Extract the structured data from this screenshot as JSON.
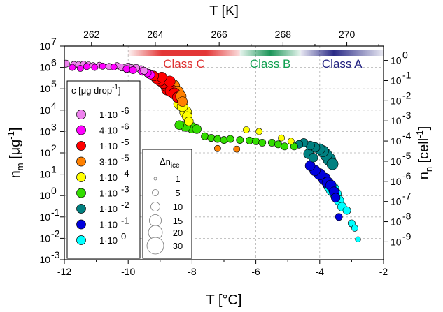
{
  "chart_data": {
    "type": "scatter",
    "axes": {
      "bottom": {
        "title": "T [°C]",
        "range": [
          -12,
          -2
        ],
        "ticks": [
          "-12",
          "-10",
          "-8",
          "-6",
          "-4",
          "-2"
        ]
      },
      "top": {
        "title": "T [K]",
        "range": [
          261.15,
          271.15
        ],
        "ticks": [
          "262",
          "264",
          "266",
          "268",
          "270"
        ]
      },
      "left": {
        "title_main": "n",
        "title_sub": "m",
        "title_unit": " [μg",
        "title_sup": "-1",
        "title_end": "]",
        "scale": "log",
        "range": [
          0.001,
          10000000
        ],
        "ticks": [
          "10-3",
          "10-2",
          "10-1",
          "100",
          "101",
          "102",
          "103",
          "104",
          "105",
          "106",
          "107"
        ]
      },
      "right": {
        "title_main": "n",
        "title_sub": "n",
        "title_unit": " [cell",
        "title_sup": "-1",
        "title_end": "]",
        "scale": "log",
        "ticks": [
          "10-9",
          "10-8",
          "10-7",
          "10-6",
          "10-5",
          "10-4",
          "10-3",
          "10-2",
          "10-1",
          "100"
        ]
      }
    },
    "grid": true,
    "class_bands": [
      {
        "label": "Class C",
        "t_from": -10.0,
        "t_to": -6.5,
        "color": "#e02020"
      },
      {
        "label": "Class B",
        "t_from": -6.5,
        "t_to": -4.6,
        "color": "#109050"
      },
      {
        "label": "Class A",
        "t_from": -4.6,
        "t_to": -2.0,
        "color": "#202080"
      }
    ],
    "concentration_legend": {
      "title": "c [μg drop",
      "title_sup": "-1",
      "title_end": "]",
      "entries": [
        {
          "label": "1·10",
          "exp": "-6",
          "color": "#ee82ee"
        },
        {
          "label": "4·10",
          "exp": "-6",
          "color": "#ff00ff"
        },
        {
          "label": "1·10",
          "exp": "-5",
          "color": "#ff0000"
        },
        {
          "label": "3·10",
          "exp": "-5",
          "color": "#ff8000"
        },
        {
          "label": "1·10",
          "exp": "-4",
          "color": "#ffff00"
        },
        {
          "label": "1·10",
          "exp": "-3",
          "color": "#33dd00"
        },
        {
          "label": "1·10",
          "exp": "-2",
          "color": "#008080"
        },
        {
          "label": "1·10",
          "exp": "-1",
          "color": "#0000dd"
        },
        {
          "label": "1·10",
          "exp": "0",
          "color": "#00ffff"
        }
      ]
    },
    "size_legend": {
      "title": "Δn",
      "title_sub": "ice",
      "entries": [
        "1",
        "5",
        "10",
        "15",
        "20",
        "30"
      ],
      "values": [
        1,
        5,
        10,
        15,
        20,
        30
      ]
    },
    "series": [
      {
        "conc": "1e-6",
        "color": "#ee82ee",
        "points": [
          {
            "x": -11.95,
            "y": 1500000.0,
            "s": 3
          },
          {
            "x": -11.7,
            "y": 1300000.0,
            "s": 3
          },
          {
            "x": -11.55,
            "y": 1350000.0,
            "s": 2
          },
          {
            "x": -11.4,
            "y": 1400000.0,
            "s": 2
          },
          {
            "x": -11.25,
            "y": 1300000.0,
            "s": 2
          },
          {
            "x": -11.1,
            "y": 1200000.0,
            "s": 2
          },
          {
            "x": -10.9,
            "y": 1250000.0,
            "s": 2
          },
          {
            "x": -10.6,
            "y": 1100000.0,
            "s": 2
          },
          {
            "x": -10.35,
            "y": 1200000.0,
            "s": 2
          },
          {
            "x": -10.2,
            "y": 1000000.0,
            "s": 3
          },
          {
            "x": -10.0,
            "y": 1050000.0,
            "s": 4
          },
          {
            "x": -9.9,
            "y": 900000.0,
            "s": 4
          },
          {
            "x": -9.75,
            "y": 950000.0,
            "s": 3
          },
          {
            "x": -9.6,
            "y": 800000.0,
            "s": 4
          },
          {
            "x": -9.5,
            "y": 700000.0,
            "s": 3
          }
        ]
      },
      {
        "conc": "4e-6",
        "color": "#ff00ff",
        "points": [
          {
            "x": -11.75,
            "y": 1000000.0,
            "s": 2
          },
          {
            "x": -11.5,
            "y": 900000.0,
            "s": 2
          },
          {
            "x": -11.3,
            "y": 1100000.0,
            "s": 2
          },
          {
            "x": -11.05,
            "y": 1000000.0,
            "s": 2
          },
          {
            "x": -10.8,
            "y": 1150000.0,
            "s": 2
          },
          {
            "x": -10.45,
            "y": 1050000.0,
            "s": 2
          },
          {
            "x": -10.05,
            "y": 850000.0,
            "s": 3
          },
          {
            "x": -9.85,
            "y": 750000.0,
            "s": 3
          },
          {
            "x": -9.55,
            "y": 650000.0,
            "s": 4
          },
          {
            "x": -9.4,
            "y": 550000.0,
            "s": 4
          },
          {
            "x": -9.3,
            "y": 450000.0,
            "s": 5
          }
        ]
      },
      {
        "conc": "1e-5",
        "color": "#ff0000",
        "points": [
          {
            "x": -9.35,
            "y": 500000.0,
            "s": 6
          },
          {
            "x": -9.2,
            "y": 400000.0,
            "s": 8
          },
          {
            "x": -9.1,
            "y": 300000.0,
            "s": 10
          },
          {
            "x": -9.0,
            "y": 250000.0,
            "s": 12
          },
          {
            "x": -8.9,
            "y": 200000.0,
            "s": 14
          },
          {
            "x": -8.8,
            "y": 150000.0,
            "s": 16
          },
          {
            "x": -8.75,
            "y": 100000.0,
            "s": 18
          },
          {
            "x": -8.65,
            "y": 80000.0,
            "s": 15
          },
          {
            "x": -8.55,
            "y": 60000.0,
            "s": 12
          },
          {
            "x": -8.45,
            "y": 40000.0,
            "s": 10
          },
          {
            "x": -8.95,
            "y": 350000.0,
            "s": 9
          },
          {
            "x": -8.7,
            "y": 220000.0,
            "s": 11
          }
        ]
      },
      {
        "conc": "3e-5",
        "color": "#ff8000",
        "points": [
          {
            "x": -8.6,
            "y": 130000.0,
            "s": 20
          },
          {
            "x": -8.45,
            "y": 70000.0,
            "s": 14
          },
          {
            "x": -8.35,
            "y": 45000.0,
            "s": 10
          },
          {
            "x": -8.3,
            "y": 25000.0,
            "s": 8
          },
          {
            "x": -7.2,
            "y": 160,
            "s": 2
          },
          {
            "x": -6.6,
            "y": 150,
            "s": 2
          }
        ]
      },
      {
        "conc": "1e-4",
        "color": "#ffff00",
        "points": [
          {
            "x": -8.4,
            "y": 20000.0,
            "s": 12
          },
          {
            "x": -8.3,
            "y": 15000.0,
            "s": 10
          },
          {
            "x": -8.2,
            "y": 8000.0,
            "s": 14
          },
          {
            "x": -8.15,
            "y": 5000.0,
            "s": 8
          },
          {
            "x": -8.1,
            "y": 3000.0,
            "s": 6
          },
          {
            "x": -6.3,
            "y": 1200.0,
            "s": 2
          },
          {
            "x": -5.9,
            "y": 1000.0,
            "s": 2
          },
          {
            "x": -5.2,
            "y": 500,
            "s": 2
          },
          {
            "x": -4.9,
            "y": 350,
            "s": 2
          }
        ]
      },
      {
        "conc": "1e-3",
        "color": "#33dd00",
        "points": [
          {
            "x": -8.4,
            "y": 2000.0,
            "s": 6
          },
          {
            "x": -8.2,
            "y": 1700.0,
            "s": 8
          },
          {
            "x": -8.0,
            "y": 1500.0,
            "s": 10
          },
          {
            "x": -7.85,
            "y": 1300.0,
            "s": 6
          },
          {
            "x": -7.6,
            "y": 600,
            "s": 3
          },
          {
            "x": -7.4,
            "y": 500,
            "s": 3
          },
          {
            "x": -7.2,
            "y": 450,
            "s": 3
          },
          {
            "x": -7.0,
            "y": 400,
            "s": 3
          },
          {
            "x": -6.8,
            "y": 450,
            "s": 3
          },
          {
            "x": -6.5,
            "y": 400,
            "s": 3
          },
          {
            "x": -6.2,
            "y": 380,
            "s": 3
          },
          {
            "x": -6.0,
            "y": 350,
            "s": 3
          },
          {
            "x": -5.8,
            "y": 300,
            "s": 3
          },
          {
            "x": -5.5,
            "y": 300,
            "s": 3
          },
          {
            "x": -5.3,
            "y": 250,
            "s": 3
          },
          {
            "x": -5.1,
            "y": 200,
            "s": 3
          },
          {
            "x": -4.8,
            "y": 200,
            "s": 3
          }
        ]
      },
      {
        "conc": "1e-2",
        "color": "#008080",
        "points": [
          {
            "x": -4.65,
            "y": 250,
            "s": 4
          },
          {
            "x": -4.5,
            "y": 300,
            "s": 5
          },
          {
            "x": -4.3,
            "y": 220,
            "s": 6
          },
          {
            "x": -4.15,
            "y": 180,
            "s": 8
          },
          {
            "x": -4.0,
            "y": 150,
            "s": 10
          },
          {
            "x": -3.9,
            "y": 120,
            "s": 12
          },
          {
            "x": -3.8,
            "y": 80,
            "s": 14
          },
          {
            "x": -3.7,
            "y": 50,
            "s": 16
          },
          {
            "x": -3.6,
            "y": 30,
            "s": 12
          },
          {
            "x": -4.35,
            "y": 90,
            "s": 8
          },
          {
            "x": -4.2,
            "y": 60,
            "s": 6
          }
        ]
      },
      {
        "conc": "1e-1",
        "color": "#0000dd",
        "points": [
          {
            "x": -4.3,
            "y": 25,
            "s": 8
          },
          {
            "x": -4.15,
            "y": 15,
            "s": 10
          },
          {
            "x": -4.0,
            "y": 10,
            "s": 12
          },
          {
            "x": -3.85,
            "y": 6,
            "s": 14
          },
          {
            "x": -3.75,
            "y": 4,
            "s": 12
          },
          {
            "x": -3.65,
            "y": 3,
            "s": 10
          },
          {
            "x": -3.55,
            "y": 1.5,
            "s": 8
          },
          {
            "x": -3.5,
            "y": 0.8,
            "s": 6
          },
          {
            "x": -3.4,
            "y": 0.1,
            "s": 3
          }
        ]
      },
      {
        "conc": "1e0",
        "color": "#00ffff",
        "points": [
          {
            "x": -3.7,
            "y": 3,
            "s": 14
          },
          {
            "x": -3.6,
            "y": 2,
            "s": 18
          },
          {
            "x": -3.5,
            "y": 1.2,
            "s": 12
          },
          {
            "x": -3.4,
            "y": 0.6,
            "s": 8
          },
          {
            "x": -3.3,
            "y": 0.3,
            "s": 6
          },
          {
            "x": -3.15,
            "y": 0.2,
            "s": 4
          },
          {
            "x": -3.0,
            "y": 0.05,
            "s": 3
          },
          {
            "x": -2.9,
            "y": 0.03,
            "s": 2
          },
          {
            "x": -2.8,
            "y": 0.009,
            "s": 1
          }
        ]
      }
    ]
  }
}
